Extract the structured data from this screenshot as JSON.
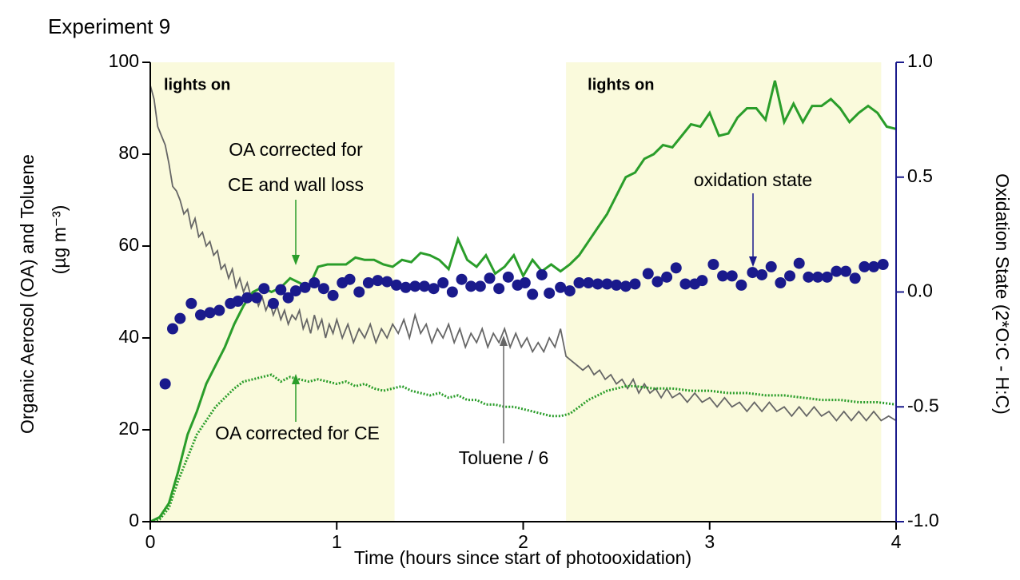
{
  "chart_data": {
    "type": "line",
    "title": "Experiment 9",
    "xlabel": "Time (hours since start of photooxidation)",
    "ylabel": "Organic Aerosol (OA) and Toluene",
    "ylabel_unit": "(µg m⁻³)",
    "y2label": "Oxidation State (2*O:C - H:C)",
    "xlim": [
      0,
      4
    ],
    "xticks": [
      0,
      1,
      2,
      3,
      4
    ],
    "ylim": [
      0,
      100
    ],
    "yticks": [
      0,
      20,
      40,
      60,
      80,
      100
    ],
    "y2lim": [
      -1,
      1
    ],
    "y2ticks": [
      {
        "value": -1,
        "label": "-1.0"
      },
      {
        "value": -0.5,
        "label": "-0.5"
      },
      {
        "value": 0,
        "label": "0.0"
      },
      {
        "value": 0.5,
        "label": "0.5"
      },
      {
        "value": 1,
        "label": "1.0"
      }
    ],
    "y2color": "#1a1a8c",
    "shaded_regions": [
      {
        "x": [
          0,
          1.31
        ],
        "label": "lights on",
        "color": "#fafadc"
      },
      {
        "x": [
          2.23,
          3.92
        ],
        "label": "lights on",
        "color": "#fafadc"
      }
    ],
    "series": [
      {
        "color": "#666666",
        "style": "solid",
        "x": [
          0,
          0.02,
          0.04,
          0.06,
          0.08,
          0.1,
          0.12,
          0.14,
          0.16,
          0.18,
          0.2,
          0.22,
          0.24,
          0.26,
          0.28,
          0.3,
          0.32,
          0.34,
          0.36,
          0.38,
          0.4,
          0.42,
          0.44,
          0.46,
          0.48,
          0.5,
          0.52,
          0.54,
          0.56,
          0.58,
          0.6,
          0.62,
          0.64,
          0.66,
          0.68,
          0.7,
          0.72,
          0.74,
          0.76,
          0.78,
          0.8,
          0.82,
          0.84,
          0.86,
          0.88,
          0.9,
          0.92,
          0.94,
          0.96,
          0.98,
          1.0,
          1.03,
          1.06,
          1.09,
          1.12,
          1.15,
          1.18,
          1.21,
          1.24,
          1.27,
          1.3,
          1.33,
          1.36,
          1.39,
          1.42,
          1.45,
          1.48,
          1.51,
          1.54,
          1.57,
          1.6,
          1.63,
          1.66,
          1.69,
          1.72,
          1.75,
          1.78,
          1.81,
          1.84,
          1.87,
          1.9,
          1.93,
          1.96,
          1.99,
          2.02,
          2.05,
          2.08,
          2.11,
          2.14,
          2.17,
          2.2,
          2.23,
          2.26,
          2.29,
          2.32,
          2.35,
          2.38,
          2.41,
          2.44,
          2.47,
          2.5,
          2.53,
          2.56,
          2.59,
          2.62,
          2.65,
          2.68,
          2.71,
          2.74,
          2.77,
          2.8,
          2.84,
          2.88,
          2.92,
          2.96,
          3.0,
          3.04,
          3.08,
          3.12,
          3.16,
          3.2,
          3.24,
          3.28,
          3.32,
          3.36,
          3.4,
          3.44,
          3.48,
          3.52,
          3.56,
          3.6,
          3.64,
          3.68,
          3.72,
          3.76,
          3.8,
          3.84,
          3.88,
          3.92,
          3.96,
          4.0
        ],
        "values": [
          95,
          92,
          86,
          84,
          82,
          78,
          73,
          72,
          70,
          67,
          68,
          64,
          66,
          62,
          63,
          60,
          61,
          58,
          59,
          55,
          56,
          53,
          55,
          51,
          53,
          50,
          52,
          49,
          50,
          47,
          49,
          46,
          48,
          45,
          47,
          44,
          46,
          43,
          45,
          44,
          46,
          42,
          44,
          41,
          45,
          42,
          44,
          40,
          43,
          41,
          44,
          40,
          43,
          39,
          42,
          40,
          43,
          39,
          42,
          40,
          43,
          41,
          44,
          40,
          45,
          41,
          43,
          39,
          42,
          40,
          43,
          39,
          42,
          38,
          41,
          39,
          42,
          38,
          41,
          39,
          42,
          38,
          41,
          38,
          40,
          37,
          39,
          37,
          40,
          38,
          42,
          36,
          35,
          34,
          33,
          34,
          32,
          33,
          31,
          32,
          30,
          31,
          29,
          31,
          28,
          30,
          28,
          29,
          27,
          29,
          27,
          28,
          26,
          28,
          26,
          27,
          25,
          27,
          25,
          26,
          24,
          26,
          24,
          26,
          24,
          25,
          23,
          25,
          23,
          25,
          23,
          24,
          22,
          24,
          22,
          24,
          22,
          24,
          22,
          23,
          22
        ]
      },
      {
        "color": "#2a9d2a",
        "style": "solid",
        "x": [
          0,
          0.05,
          0.1,
          0.15,
          0.2,
          0.25,
          0.3,
          0.35,
          0.4,
          0.45,
          0.5,
          0.55,
          0.6,
          0.65,
          0.7,
          0.75,
          0.8,
          0.85,
          0.9,
          0.95,
          1.0,
          1.05,
          1.1,
          1.15,
          1.2,
          1.25,
          1.3,
          1.35,
          1.4,
          1.45,
          1.5,
          1.55,
          1.6,
          1.65,
          1.7,
          1.75,
          1.8,
          1.85,
          1.9,
          1.95,
          2.0,
          2.05,
          2.1,
          2.15,
          2.2,
          2.25,
          2.3,
          2.35,
          2.4,
          2.45,
          2.5,
          2.55,
          2.6,
          2.65,
          2.7,
          2.75,
          2.8,
          2.85,
          2.9,
          2.95,
          3.0,
          3.05,
          3.1,
          3.15,
          3.2,
          3.25,
          3.3,
          3.35,
          3.4,
          3.45,
          3.5,
          3.55,
          3.6,
          3.65,
          3.7,
          3.75,
          3.8,
          3.85,
          3.9,
          3.95,
          4.0
        ],
        "values": [
          0,
          1,
          4,
          11,
          19,
          24,
          30,
          34,
          38,
          43,
          47,
          50,
          51,
          50,
          51,
          53,
          52,
          51,
          55.5,
          56,
          56,
          56,
          57.5,
          57,
          57,
          56,
          55.5,
          57,
          56.5,
          58.5,
          58,
          57,
          55,
          61.5,
          57,
          55.5,
          58,
          54,
          55.5,
          58,
          53.5,
          57,
          54.5,
          56,
          54.5,
          56,
          58,
          61,
          64,
          67,
          71,
          75,
          76,
          79,
          80,
          82,
          81.5,
          84,
          86.5,
          86,
          89,
          84,
          84.5,
          88,
          90,
          90,
          87.5,
          96,
          87,
          91,
          87,
          90.5,
          90.5,
          92,
          90,
          87,
          89,
          90.5,
          89,
          86,
          85.5
        ]
      },
      {
        "color": "#2a9d2a",
        "style": "dotted",
        "x": [
          0,
          0.05,
          0.1,
          0.15,
          0.2,
          0.25,
          0.3,
          0.35,
          0.4,
          0.45,
          0.5,
          0.55,
          0.6,
          0.65,
          0.7,
          0.75,
          0.8,
          0.85,
          0.9,
          0.95,
          1.0,
          1.05,
          1.1,
          1.15,
          1.2,
          1.25,
          1.3,
          1.35,
          1.4,
          1.45,
          1.5,
          1.55,
          1.6,
          1.65,
          1.7,
          1.75,
          1.8,
          1.85,
          1.9,
          1.95,
          2.0,
          2.05,
          2.1,
          2.15,
          2.2,
          2.25,
          2.3,
          2.35,
          2.4,
          2.45,
          2.5,
          2.55,
          2.6,
          2.7,
          2.8,
          2.9,
          3.0,
          3.1,
          3.2,
          3.3,
          3.4,
          3.5,
          3.6,
          3.7,
          3.8,
          3.9,
          4.0
        ],
        "values": [
          0,
          0.5,
          3,
          9,
          14,
          19,
          22,
          25,
          27,
          29,
          30.5,
          31,
          31.5,
          32,
          30.5,
          31.5,
          31,
          30.5,
          31,
          30.5,
          30,
          30.5,
          29.5,
          30,
          29,
          28.5,
          29,
          29.5,
          28.5,
          28,
          27.5,
          28,
          27,
          27.5,
          26.5,
          26.5,
          25.5,
          25.5,
          25,
          25,
          24.5,
          24,
          23.5,
          23,
          23,
          23.5,
          25,
          26.5,
          27.5,
          28.5,
          29,
          29.5,
          29.5,
          29,
          29,
          28.5,
          28.5,
          28,
          28,
          27.5,
          27.5,
          27,
          26.5,
          26.5,
          26,
          26,
          25.5
        ]
      },
      {
        "color": "#1a1a8c",
        "style": "markers",
        "axis": "y2",
        "x": [
          0.08,
          0.12,
          0.16,
          0.22,
          0.27,
          0.32,
          0.37,
          0.43,
          0.47,
          0.52,
          0.57,
          0.61,
          0.66,
          0.7,
          0.74,
          0.78,
          0.83,
          0.88,
          0.93,
          0.98,
          1.03,
          1.07,
          1.12,
          1.17,
          1.22,
          1.27,
          1.32,
          1.37,
          1.42,
          1.47,
          1.52,
          1.57,
          1.62,
          1.67,
          1.72,
          1.77,
          1.82,
          1.87,
          1.92,
          1.97,
          2.01,
          2.05,
          2.1,
          2.14,
          2.2,
          2.25,
          2.3,
          2.35,
          2.4,
          2.45,
          2.5,
          2.55,
          2.6,
          2.67,
          2.72,
          2.77,
          2.82,
          2.87,
          2.92,
          2.96,
          3.02,
          3.07,
          3.12,
          3.17,
          3.23,
          3.28,
          3.33,
          3.38,
          3.43,
          3.48,
          3.53,
          3.58,
          3.63,
          3.68,
          3.73,
          3.78,
          3.83,
          3.88,
          3.93
        ],
        "values": [
          -0.4,
          -0.16,
          -0.115,
          -0.05,
          -0.1,
          -0.09,
          -0.08,
          -0.05,
          -0.04,
          -0.025,
          -0.025,
          0.015,
          -0.05,
          0.01,
          -0.025,
          0.005,
          0.02,
          0.04,
          0.015,
          -0.015,
          0.04,
          0.055,
          0,
          0.04,
          0.05,
          0.045,
          0.03,
          0.02,
          0.025,
          0.025,
          0.015,
          0.04,
          0,
          0.055,
          0.025,
          0.025,
          0.06,
          0.015,
          0.065,
          0.03,
          0.04,
          -0.01,
          0.075,
          -0.005,
          0.02,
          0.005,
          0.04,
          0.04,
          0.035,
          0.035,
          0.03,
          0.025,
          0.035,
          0.08,
          0.045,
          0.065,
          0.105,
          0.035,
          0.035,
          0.05,
          0.12,
          0.07,
          0.07,
          0.03,
          0.085,
          0.075,
          0.11,
          0.04,
          0.07,
          0.125,
          0.065,
          0.065,
          0.065,
          0.09,
          0.09,
          0.06,
          0.11,
          0.11,
          0.12
        ]
      }
    ],
    "annotations": [
      {
        "text": [
          "OA corrected for",
          "CE and wall loss"
        ],
        "color": "#2a9d2a"
      },
      {
        "text": [
          "OA corrected for CE"
        ],
        "color": "#2a9d2a"
      },
      {
        "text": [
          "Toluene / 6"
        ],
        "color": "#666666"
      },
      {
        "text": [
          "oxidation state"
        ],
        "color": "#1a1a8c"
      }
    ]
  }
}
